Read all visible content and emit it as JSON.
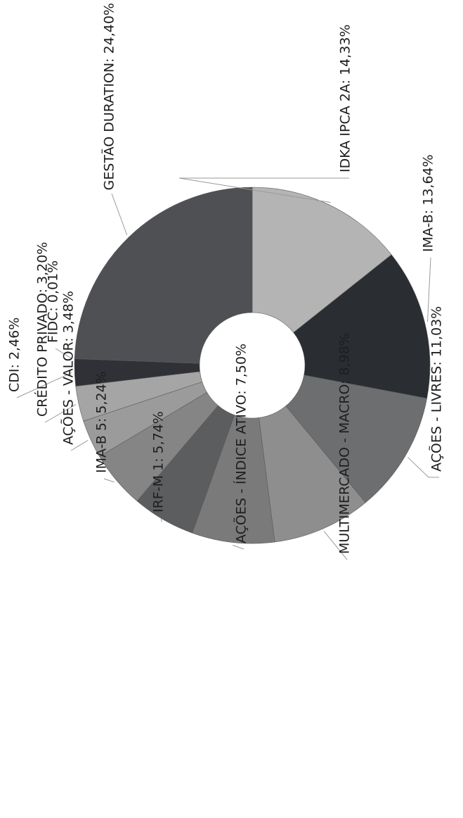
{
  "chart_data": {
    "type": "pie",
    "variant": "donut",
    "title": "",
    "orientation": "rotated 90 degrees counter-clockwise",
    "slices": [
      {
        "label": "IDKA IPCA 2A: 14,33%",
        "name": "IDKA IPCA 2A",
        "value": 14.33,
        "color": "#b4b4b4"
      },
      {
        "label": "IMA-B: 13,64%",
        "name": "IMA-B",
        "value": 13.64,
        "color": "#2a2d31"
      },
      {
        "label": "AÇÕES - LIVRES: 11,03%",
        "name": "AÇÕES - LIVRES",
        "value": 11.03,
        "color": "#6d6e70"
      },
      {
        "label": "MULTIMERCADO - MACRO: 8,98%",
        "name": "MULTIMERCADO - MACRO",
        "value": 8.98,
        "color": "#8e8e8e"
      },
      {
        "label": "AÇÕES - ÍNDICE ATIVO: 7,50%",
        "name": "AÇÕES - ÍNDICE ATIVO",
        "value": 7.5,
        "color": "#7a7a7a"
      },
      {
        "label": "IRF-M 1: 5,74%",
        "name": "IRF-M 1",
        "value": 5.74,
        "color": "#5c5d5f"
      },
      {
        "label": "IMA-B 5: 5,24%",
        "name": "IMA-B 5",
        "value": 5.24,
        "color": "#858585"
      },
      {
        "label": "AÇÕES - VALOR: 3,48%",
        "name": "AÇÕES - VALOR",
        "value": 3.48,
        "color": "#9b9b9b"
      },
      {
        "label": "CRÉDITO PRIVADO: 3,20%",
        "name": "CRÉDITO PRIVADO",
        "value": 3.2,
        "color": "#a5a5a5"
      },
      {
        "label": "CDI: 2,46%",
        "name": "CDI",
        "value": 2.46,
        "color": "#2f3136"
      },
      {
        "label": "FIDC: 0,01%",
        "name": "FIDC",
        "value": 0.01,
        "color": "#404246"
      },
      {
        "label": "GESTÃO DURATION: 24,40%",
        "name": "GESTÃO DURATION",
        "value": 24.4,
        "color": "#4f5053"
      }
    ]
  }
}
